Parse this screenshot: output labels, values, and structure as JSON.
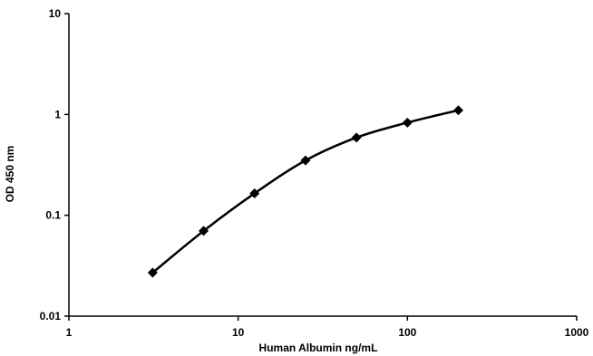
{
  "chart_data": {
    "type": "line",
    "title": "",
    "xlabel": "Human Albumin ng/mL",
    "ylabel": "OD 450 nm",
    "xscale": "log",
    "yscale": "log",
    "xlim": [
      1,
      1000
    ],
    "ylim": [
      0.01,
      10
    ],
    "x_ticks": [
      "1",
      "10",
      "100",
      "1000"
    ],
    "y_ticks": [
      "10",
      "1",
      "0.1",
      "0.01"
    ],
    "grid": false,
    "legend": "none",
    "series": [
      {
        "color": "#000000",
        "marker": "diamond",
        "x": [
          3.125,
          6.25,
          12.5,
          25,
          50,
          100,
          200
        ],
        "y": [
          0.027,
          0.07,
          0.165,
          0.35,
          0.59,
          0.83,
          1.1
        ]
      }
    ]
  }
}
